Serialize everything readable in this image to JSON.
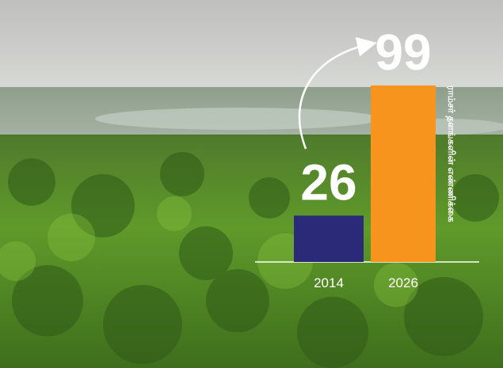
{
  "chart_data": {
    "type": "bar",
    "categories": [
      "2014",
      "2026"
    ],
    "values": [
      26,
      99
    ],
    "colors": [
      "#2b2a78",
      "#f7941d"
    ],
    "y_label": "ராம்சர் தளங்களின் எண்ணிக்கை"
  }
}
